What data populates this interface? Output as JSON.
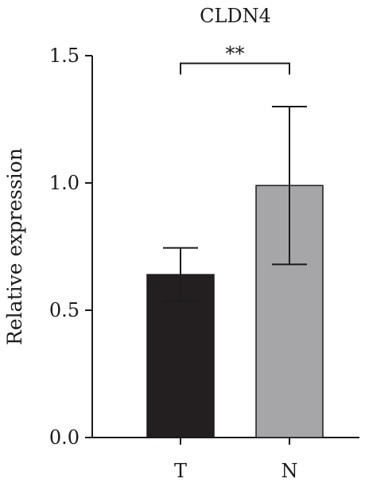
{
  "chart_data": {
    "type": "bar",
    "title": "CLDN4",
    "xlabel": "",
    "ylabel": "Relative expression",
    "categories": [
      "T",
      "N"
    ],
    "values": [
      0.64,
      0.99
    ],
    "errors": [
      0.105,
      0.31
    ],
    "ylim": [
      0,
      1.5
    ],
    "yticks": [
      0.0,
      0.5,
      1.0,
      1.5
    ],
    "ytick_labels": [
      "0.0",
      "0.5",
      "1.0",
      "1.5"
    ],
    "grid": false,
    "colors": [
      "#231f20",
      "#a6a6a8"
    ],
    "significance": {
      "label": "**",
      "from": "T",
      "to": "N",
      "y": 1.47
    }
  }
}
